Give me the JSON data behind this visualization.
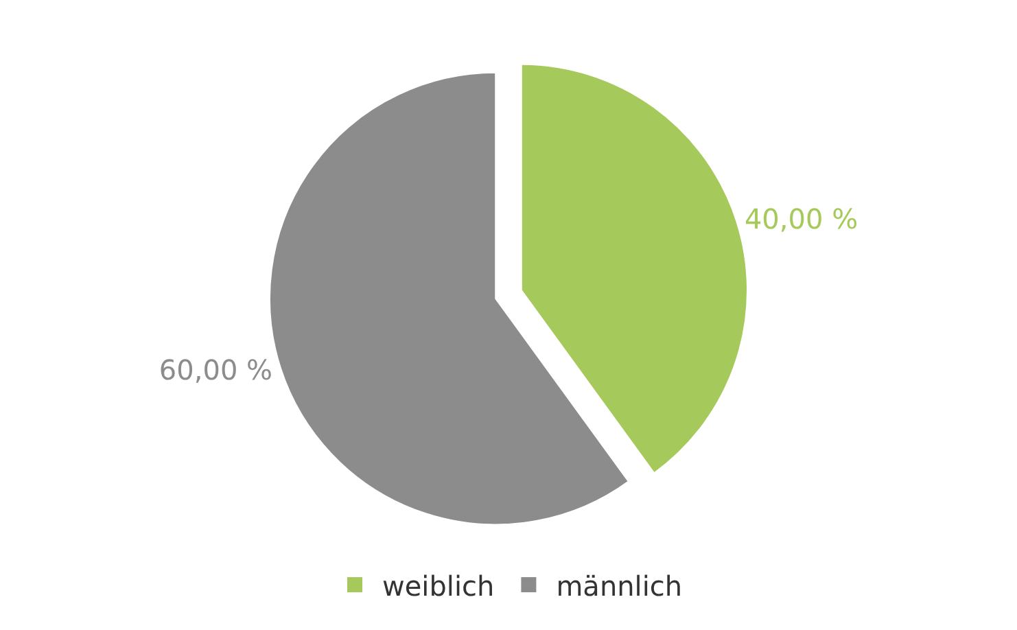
{
  "chart_data": {
    "type": "pie",
    "categories": [
      "weiblich",
      "männlich"
    ],
    "values": [
      40,
      60
    ],
    "colors": [
      "#a5c95a",
      "#8c8c8c"
    ],
    "value_labels": [
      "40,00 %",
      "60,00 %"
    ],
    "legend": "bottom"
  }
}
